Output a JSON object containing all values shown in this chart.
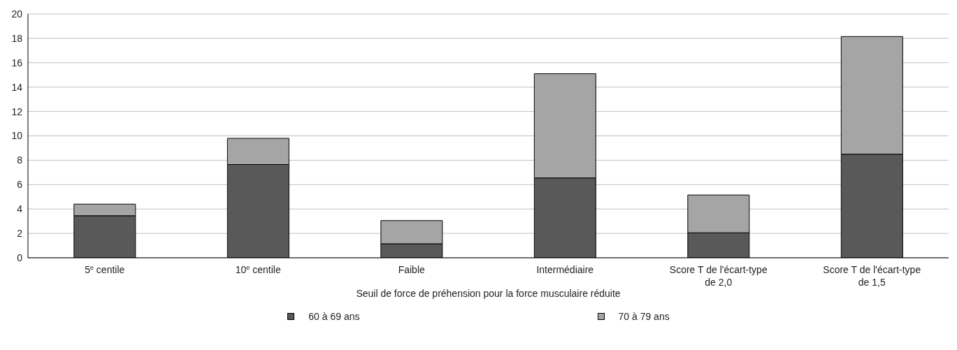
{
  "chart_data": {
    "type": "bar",
    "stacked": true,
    "xlabel": "Seuil de force de préhension pour la force musculaire réduite",
    "categories": [
      "5$^{e}$ centile",
      "10$^{e}$ centile",
      "Faible",
      "Intermédiaire",
      "Score T de l'écart-type de 2,0",
      "Score T de l'écart-type de 1,5"
    ],
    "series": [
      {
        "name": "60 à 69 ans",
        "color": "#595959",
        "values": [
          3.45,
          7.65,
          1.15,
          6.55,
          2.05,
          8.5
        ]
      },
      {
        "name": "70 à 79 ans",
        "color": "#a5a5a5",
        "values": [
          0.95,
          2.15,
          1.9,
          8.55,
          3.1,
          9.65
        ]
      }
    ],
    "ylim": [
      0,
      20
    ],
    "yticks": [
      0,
      2,
      4,
      6,
      8,
      10,
      12,
      14,
      16,
      18,
      20
    ],
    "grid": "y",
    "legend": "bottom"
  }
}
